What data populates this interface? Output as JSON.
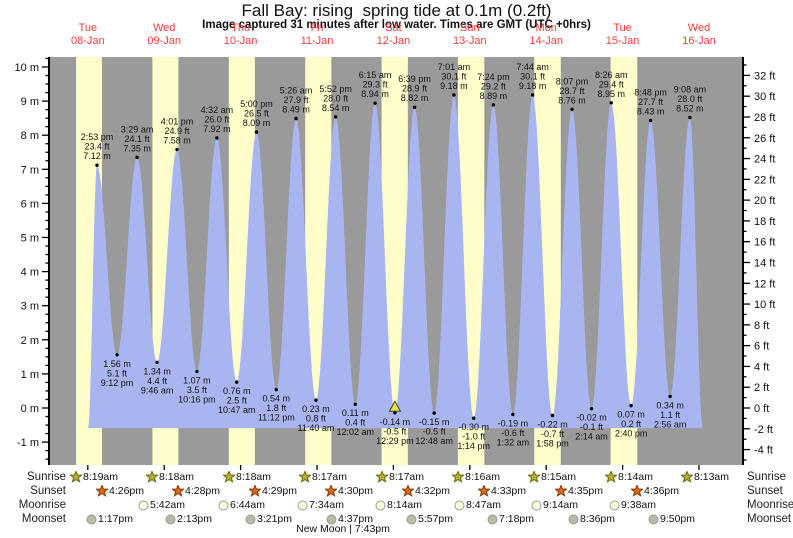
{
  "title": "Fall Bay: rising  spring tide at 0.1m (0.2ft)",
  "subtitle": "Image captured 31 minutes after low water. Times are GMT (UTC +0hrs)",
  "colors": {
    "night_band": "#9a9a9a",
    "day_band": "#ffffcc",
    "tide_fill": "#a9b5f1",
    "day_label": "#ff3b3b",
    "axis": "#000000",
    "event_text": "#111111",
    "marker_fill": "#e2e258",
    "marker_stroke": "#444400",
    "sunrise_icon": "#b3ae3e",
    "sunrise_icon_stroke": "#6b6b00",
    "sunset_icon": "#d96a1e",
    "sunset_icon_stroke": "#8a3700",
    "moonrise_icon": "#ffffdd",
    "moonset_icon": "#b9b9aa",
    "moon_icon_stroke": "#999999"
  },
  "chart_data": {
    "type": "area",
    "title": "Fall Bay: rising  spring tide at 0.1m (0.2ft)",
    "x_axis_days": [
      {
        "name": "Tue",
        "date": "08-Jan"
      },
      {
        "name": "Wed",
        "date": "09-Jan"
      },
      {
        "name": "Thu",
        "date": "10-Jan"
      },
      {
        "name": "Fri",
        "date": "11-Jan"
      },
      {
        "name": "Sat",
        "date": "12-Jan"
      },
      {
        "name": "Sun",
        "date": "13-Jan"
      },
      {
        "name": "Mon",
        "date": "14-Jan"
      },
      {
        "name": "Tue",
        "date": "15-Jan"
      },
      {
        "name": "Wed",
        "date": "16-Jan"
      }
    ],
    "y_axis_left": {
      "unit": "m",
      "min": -1,
      "max": 10,
      "label_step": 1,
      "minor_step": 0.25
    },
    "y_axis_right": {
      "unit": "ft",
      "min": -4,
      "max": 32,
      "label_step": 2,
      "minor_step": 1
    },
    "events": [
      {
        "type": "high",
        "time": "2:53 pm",
        "ft_label": "23.4 ft",
        "m_label": "7.12 m",
        "height_m": 7.12,
        "t": 0.62
      },
      {
        "type": "low",
        "time": "9:12 pm",
        "ft_label": "5.1 ft",
        "m_label": "1.56 m",
        "height_m": 1.56,
        "t": 0.883
      },
      {
        "type": "high",
        "time": "3:29 am",
        "ft_label": "24.1 ft",
        "m_label": "7.35 m",
        "height_m": 7.35,
        "t": 1.145
      },
      {
        "type": "low",
        "time": "9:46 am",
        "ft_label": "4.4 ft",
        "m_label": "1.34 m",
        "height_m": 1.34,
        "t": 1.407
      },
      {
        "type": "high",
        "time": "4:01 pm",
        "ft_label": "24.9 ft",
        "m_label": "7.58 m",
        "height_m": 7.58,
        "t": 1.667
      },
      {
        "type": "low",
        "time": "10:16 pm",
        "ft_label": "3.5 ft",
        "m_label": "1.07 m",
        "height_m": 1.07,
        "t": 1.928
      },
      {
        "type": "high",
        "time": "4:32 am",
        "ft_label": "26.0 ft",
        "m_label": "7.92 m",
        "height_m": 7.92,
        "t": 2.189
      },
      {
        "type": "low",
        "time": "10:47 am",
        "ft_label": "2.5 ft",
        "m_label": "0.76 m",
        "height_m": 0.76,
        "t": 2.449
      },
      {
        "type": "high",
        "time": "5:00 pm",
        "ft_label": "26.5 ft",
        "m_label": "8.09 m",
        "height_m": 8.09,
        "t": 2.708
      },
      {
        "type": "low",
        "time": "11:12 pm",
        "ft_label": "1.8 ft",
        "m_label": "0.54 m",
        "height_m": 0.54,
        "t": 2.967
      },
      {
        "type": "high",
        "time": "5:26 am",
        "ft_label": "27.9 ft",
        "m_label": "8.49 m",
        "height_m": 8.49,
        "t": 3.226
      },
      {
        "type": "low",
        "time": "11:40 am",
        "ft_label": "0.8 ft",
        "m_label": "0.23 m",
        "height_m": 0.23,
        "t": 3.486
      },
      {
        "type": "high",
        "time": "5:52 pm",
        "ft_label": "28.0 ft",
        "m_label": "8.54 m",
        "height_m": 8.54,
        "t": 3.744
      },
      {
        "type": "low",
        "time": "12:02 am",
        "ft_label": "0.4 ft",
        "m_label": "0.11 m",
        "height_m": 0.11,
        "t": 4.001
      },
      {
        "type": "high",
        "time": "6:15 am",
        "ft_label": "29.3 ft",
        "m_label": "8.94 m",
        "height_m": 8.94,
        "t": 4.26
      },
      {
        "type": "low",
        "time": "12:29 pm",
        "ft_label": "-0.5 ft",
        "m_label": "-0.14 m",
        "height_m": -0.14,
        "t": 4.52,
        "marker": true
      },
      {
        "type": "high",
        "time": "6:39 pm",
        "ft_label": "28.9 ft",
        "m_label": "8.82 m",
        "height_m": 8.82,
        "t": 4.777
      },
      {
        "type": "low",
        "time": "12:48 am",
        "ft_label": "-0.5 ft",
        "m_label": "-0.15 m",
        "height_m": -0.15,
        "t": 5.033
      },
      {
        "type": "high",
        "time": "7:01 am",
        "ft_label": "30.1 ft",
        "m_label": "9.18 m",
        "height_m": 9.18,
        "t": 5.292
      },
      {
        "type": "low",
        "time": "1:14 pm",
        "ft_label": "-1.0 ft",
        "m_label": "-0.30 m",
        "height_m": -0.3,
        "t": 5.551
      },
      {
        "type": "high",
        "time": "7:24 pm",
        "ft_label": "29.2 ft",
        "m_label": "8.89 m",
        "height_m": 8.89,
        "t": 5.808
      },
      {
        "type": "low",
        "time": "1:32 am",
        "ft_label": "-0.6 ft",
        "m_label": "-0.19 m",
        "height_m": -0.19,
        "t": 6.064
      },
      {
        "type": "high",
        "time": "7:44 am",
        "ft_label": "30.1 ft",
        "m_label": "9.18 m",
        "height_m": 9.18,
        "t": 6.322
      },
      {
        "type": "low",
        "time": "1:58 pm",
        "ft_label": "-0.7 ft",
        "m_label": "-0.22 m",
        "height_m": -0.22,
        "t": 6.582
      },
      {
        "type": "high",
        "time": "8:07 pm",
        "ft_label": "28.7 ft",
        "m_label": "8.76 m",
        "height_m": 8.76,
        "t": 6.838
      },
      {
        "type": "low",
        "time": "2:14 am",
        "ft_label": "-0.1 ft",
        "m_label": "-0.02 m",
        "height_m": -0.02,
        "t": 7.093
      },
      {
        "type": "high",
        "time": "8:26 am",
        "ft_label": "29.4 ft",
        "m_label": "8.95 m",
        "height_m": 8.95,
        "t": 7.351
      },
      {
        "type": "low",
        "time": "2:40 pm",
        "ft_label": "0.2 ft",
        "m_label": "0.07 m",
        "height_m": 0.07,
        "t": 7.611
      },
      {
        "type": "high",
        "time": "8:48 pm",
        "ft_label": "27.7 ft",
        "m_label": "8.43 m",
        "height_m": 8.43,
        "t": 7.867
      },
      {
        "type": "low",
        "time": "2:56 am",
        "ft_label": "1.1 ft",
        "m_label": "0.34 m",
        "height_m": 0.34,
        "t": 8.122
      },
      {
        "type": "high",
        "time": "9:08 am",
        "ft_label": "28.0 ft",
        "m_label": "8.52 m",
        "height_m": 8.52,
        "t": 8.381
      }
    ]
  },
  "astro": {
    "row_labels": {
      "sunrise": "Sunrise",
      "sunset": "Sunset",
      "moonrise": "Moonrise",
      "moonset": "Moonset"
    },
    "sunrise": [
      {
        "time": "8:19am",
        "t": 0.347
      },
      {
        "time": "8:18am",
        "t": 1.346
      },
      {
        "time": "8:18am",
        "t": 2.346
      },
      {
        "time": "8:17am",
        "t": 3.345
      },
      {
        "time": "8:17am",
        "t": 4.345
      },
      {
        "time": "8:16am",
        "t": 5.344
      },
      {
        "time": "8:15am",
        "t": 6.344
      },
      {
        "time": "8:14am",
        "t": 7.343
      },
      {
        "time": "8:13am",
        "t": 8.342
      }
    ],
    "sunset": [
      {
        "time": "4:26pm",
        "t": 0.685
      },
      {
        "time": "4:28pm",
        "t": 1.686
      },
      {
        "time": "4:29pm",
        "t": 2.687
      },
      {
        "time": "4:30pm",
        "t": 3.688
      },
      {
        "time": "4:32pm",
        "t": 4.689
      },
      {
        "time": "4:33pm",
        "t": 5.69
      },
      {
        "time": "4:35pm",
        "t": 6.691
      },
      {
        "time": "4:36pm",
        "t": 7.692
      }
    ],
    "moonrise": [
      {
        "time": "5:42am",
        "t": 1.238
      },
      {
        "time": "6:44am",
        "t": 2.281
      },
      {
        "time": "7:34am",
        "t": 3.315
      },
      {
        "time": "8:14am",
        "t": 4.343
      },
      {
        "time": "8:47am",
        "t": 5.366
      },
      {
        "time": "9:14am",
        "t": 6.385
      },
      {
        "time": "9:38am",
        "t": 7.401
      }
    ],
    "moonset": [
      {
        "time": "1:17pm",
        "t": 0.554
      },
      {
        "time": "2:13pm",
        "t": 1.592
      },
      {
        "time": "3:21pm",
        "t": 2.64
      },
      {
        "time": "4:37pm",
        "t": 3.692
      },
      {
        "time": "5:57pm",
        "t": 4.748
      },
      {
        "time": "7:18pm",
        "t": 5.804
      },
      {
        "time": "8:36pm",
        "t": 6.858
      },
      {
        "time": "9:50pm",
        "t": 7.91
      }
    ],
    "moon_phase": "New Moon | 7:43pm"
  }
}
